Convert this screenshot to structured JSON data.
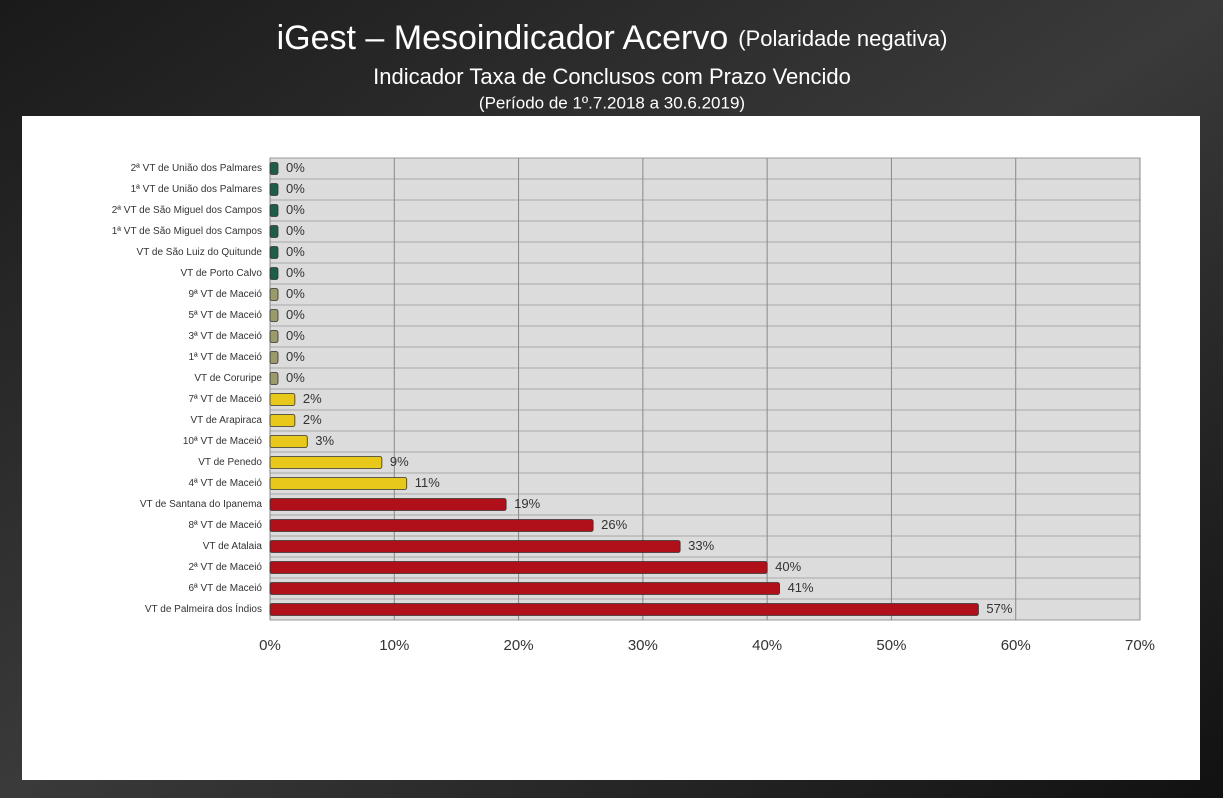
{
  "chart_data": {
    "type": "barh",
    "title": "iGest – Mesoindicador Acervo",
    "title_note": "(Polaridade negativa)",
    "subtitle": "Indicador Taxa de Conclusos com Prazo Vencido",
    "period": "(Período de 1º.7.2018  a  30.6.2019)",
    "categories": [
      "2ª VT de União dos Palmares",
      "1ª VT de União dos Palmares",
      "2ª VT de São Miguel dos Campos",
      "1ª VT de São Miguel dos Campos",
      "VT de São Luiz do Quitunde",
      "VT de Porto Calvo",
      "9ª VT de Maceió",
      "5ª VT de Maceió",
      "3ª VT de Maceió",
      "1ª VT de Maceió",
      "VT de Coruripe",
      "7ª VT de Maceió",
      "VT de Arapiraca",
      "10ª VT de Maceió",
      "VT de Penedo",
      "4ª VT de Maceió",
      "VT de Santana do Ipanema",
      "8ª VT de Maceió",
      "VT de Atalaia",
      "2ª VT de Maceió",
      "6ª VT de Maceió",
      "VT de Palmeira dos Índios"
    ],
    "values": [
      0,
      0,
      0,
      0,
      0,
      0,
      0,
      0,
      0,
      0,
      0,
      2,
      2,
      3,
      9,
      11,
      19,
      26,
      33,
      40,
      41,
      57
    ],
    "value_labels": [
      "0%",
      "0%",
      "0%",
      "0%",
      "0%",
      "0%",
      "0%",
      "0%",
      "0%",
      "0%",
      "0%",
      "2%",
      "2%",
      "3%",
      "9%",
      "11%",
      "19%",
      "26%",
      "33%",
      "40%",
      "41%",
      "57%"
    ],
    "colors": [
      "#1f5c4a",
      "#1f5c4a",
      "#1f5c4a",
      "#1f5c4a",
      "#1f5c4a",
      "#1f5c4a",
      "#9a9a6a",
      "#9a9a6a",
      "#9a9a6a",
      "#9a9a6a",
      "#9a9a6a",
      "#e8c81a",
      "#e8c81a",
      "#e8c81a",
      "#e8c81a",
      "#e8c81a",
      "#b0101a",
      "#b0101a",
      "#b0101a",
      "#b0101a",
      "#b0101a",
      "#b0101a"
    ],
    "xlim": [
      0,
      70
    ],
    "xticks": [
      {
        "value": 0,
        "label": "0%"
      },
      {
        "value": 10,
        "label": "10%"
      },
      {
        "value": 20,
        "label": "20%"
      },
      {
        "value": 30,
        "label": "30%"
      },
      {
        "value": 40,
        "label": "40%"
      },
      {
        "value": 50,
        "label": "50%"
      },
      {
        "value": 60,
        "label": "60%"
      },
      {
        "value": 70,
        "label": "70%"
      }
    ],
    "grid": true
  }
}
